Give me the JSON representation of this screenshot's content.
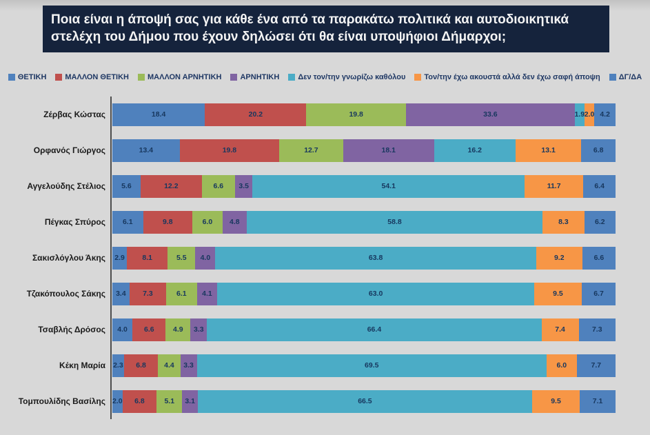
{
  "title": "Ποια είναι η άποψή σας για κάθε ένα από τα παρακάτω πολιτικά και αυτοδιοικητικά στελέχη του Δήμου που έχουν δηλώσει ότι θα είναι υποψήφιοι Δήμαρχοι;",
  "colors": {
    "title_bar_background": "#15233c",
    "title_text": "#f4f4f4",
    "page_background": "#d8d8d8",
    "axis_line": "#4d4d4d",
    "legend_text": "#1f3864",
    "segment_value_text": "#17375e"
  },
  "chart_data": {
    "type": "bar",
    "orientation": "horizontal",
    "stacked": true,
    "value_labels": "inside",
    "legend_position": "top",
    "xlim": [
      0,
      100
    ],
    "grid": false,
    "categories": [
      "Ζέρβας Κώστας",
      "Ορφανός Γιώργος",
      "Αγγελούδης Στέλιος",
      "Πέγκας Σπύρος",
      "Σακισλόγλου Άκης",
      "Τζακόπουλος Σάκης",
      "Τσαβλής Δρόσος",
      "Κέκη Μαρία",
      "Τομπουλίδης Βασίλης"
    ],
    "series": [
      {
        "name": "ΘΕΤΙΚΗ",
        "color": "#4F81BD",
        "values": [
          18.4,
          13.4,
          5.6,
          6.1,
          2.9,
          3.4,
          4.0,
          2.3,
          2.0
        ]
      },
      {
        "name": "ΜΑΛΛΟΝ ΘΕΤΙΚΗ",
        "color": "#C0504D",
        "values": [
          20.2,
          19.8,
          12.2,
          9.8,
          8.1,
          7.3,
          6.6,
          6.8,
          6.8
        ]
      },
      {
        "name": "ΜΑΛΛΟΝ ΑΡΝΗΤΙΚΗ",
        "color": "#9BBB59",
        "values": [
          19.8,
          12.7,
          6.6,
          6.0,
          5.5,
          6.1,
          4.9,
          4.4,
          5.1
        ]
      },
      {
        "name": "ΑΡΝΗΤΙΚΗ",
        "color": "#8064A2",
        "values": [
          33.6,
          18.1,
          3.5,
          4.8,
          4.0,
          4.1,
          3.3,
          3.3,
          3.1
        ]
      },
      {
        "name": "Δεν τον/την γνωρίζω καθόλου",
        "color": "#4BACC6",
        "values": [
          1.9,
          16.2,
          54.1,
          58.8,
          63.8,
          63.0,
          66.4,
          69.5,
          66.5
        ]
      },
      {
        "name": "Τον/την έχω ακουστά αλλά δεν έχω σαφή άποψη",
        "color": "#F79646",
        "values": [
          2.0,
          13.1,
          11.7,
          8.3,
          9.2,
          9.5,
          7.4,
          6.0,
          9.5
        ]
      },
      {
        "name": "ΔΓ/ΔΑ",
        "color": "#4F81BD",
        "values": [
          4.2,
          6.8,
          6.4,
          6.2,
          6.6,
          6.7,
          7.3,
          7.7,
          7.1
        ]
      }
    ]
  }
}
